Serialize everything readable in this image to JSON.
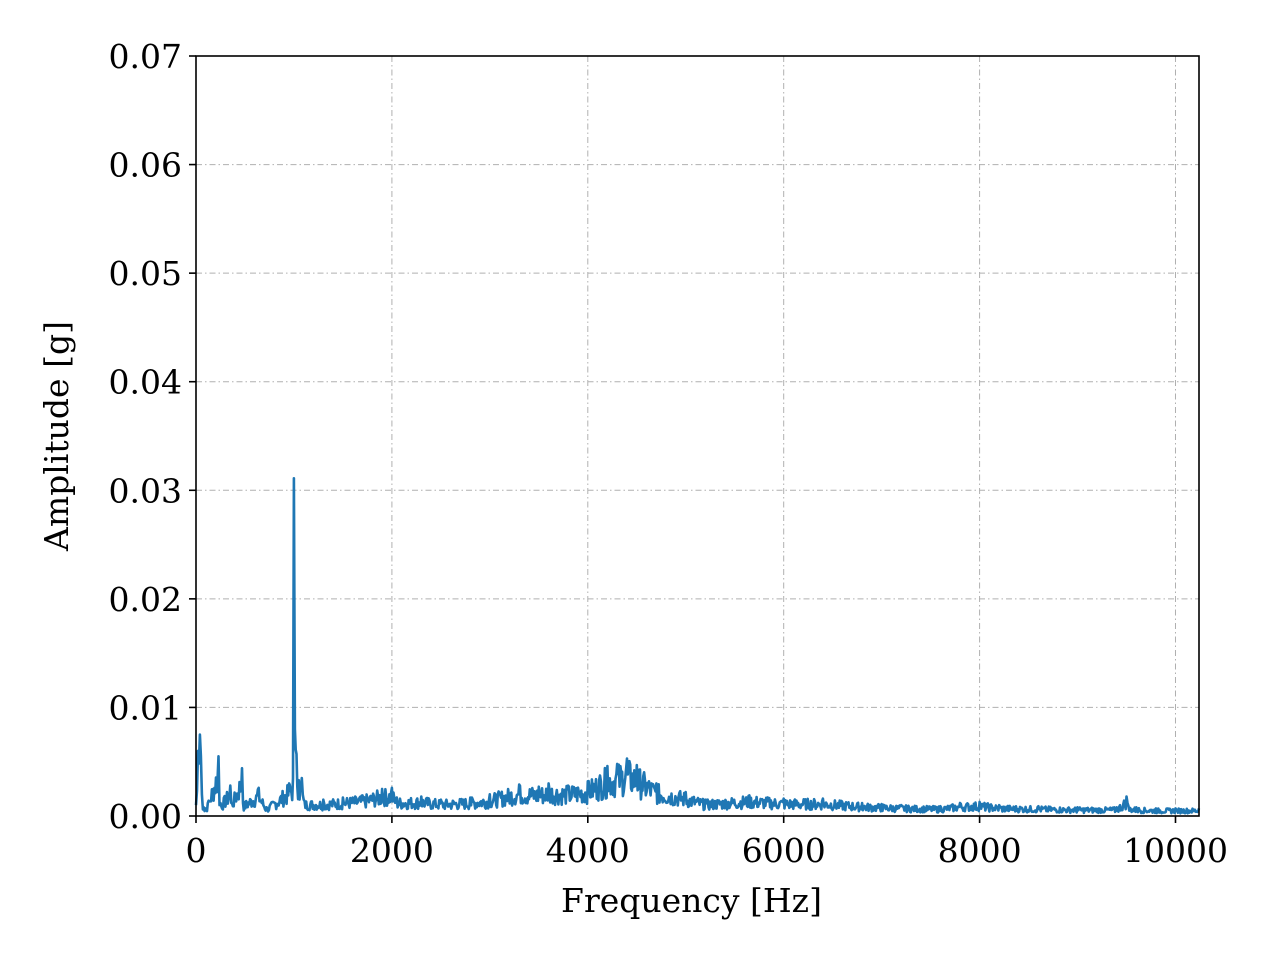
{
  "chart_data": {
    "type": "line",
    "title": "",
    "xlabel": "Frequency [Hz]",
    "ylabel": "Amplitude [g]",
    "xlim": [
      0,
      10240
    ],
    "ylim": [
      0,
      0.07
    ],
    "x_ticks": [
      0,
      2000,
      4000,
      6000,
      8000,
      10000
    ],
    "x_tick_labels": [
      "0",
      "2000",
      "4000",
      "6000",
      "8000",
      "10000"
    ],
    "y_ticks": [
      0,
      0.01,
      0.02,
      0.03,
      0.04,
      0.05,
      0.06,
      0.07
    ],
    "y_tick_labels": [
      "0.00",
      "0.01",
      "0.02",
      "0.03",
      "0.04",
      "0.05",
      "0.06",
      "0.07"
    ],
    "grid": true,
    "legend": "none",
    "colors": {
      "series": "#1f77b4",
      "grid": "#b0b0b0",
      "axes": "#000000"
    },
    "series": [
      {
        "x": [
          0,
          20,
          40,
          50,
          60,
          80,
          120,
          230,
          240,
          250,
          350,
          360,
          470,
          480,
          640,
          720,
          950,
          990,
          1000,
          1010,
          1050,
          1080,
          1100,
          1300,
          1500,
          1700,
          1900,
          2000,
          2050,
          2300,
          2500,
          2800,
          3000,
          3300,
          3500,
          3600,
          3800,
          4000,
          4200,
          4300,
          4400,
          4500,
          4700,
          5000,
          5200,
          5650,
          6000,
          6400,
          6800,
          7000,
          7200,
          7600,
          7800,
          8000,
          8200,
          8600,
          9000,
          9400,
          9500,
          9520,
          9600,
          9800,
          10000,
          10240
        ],
        "y": [
          0.001,
          0.006,
          0.0075,
          0.0055,
          0.002,
          0.0008,
          0.0012,
          0.0055,
          0.001,
          0.0012,
          0.0028,
          0.0012,
          0.0044,
          0.0012,
          0.0026,
          0.0008,
          0.003,
          0.0035,
          0.0311,
          0.008,
          0.0033,
          0.0035,
          0.0015,
          0.0015,
          0.0017,
          0.0019,
          0.0025,
          0.0026,
          0.0017,
          0.0018,
          0.0015,
          0.0017,
          0.002,
          0.0029,
          0.0027,
          0.003,
          0.0028,
          0.0032,
          0.0046,
          0.0048,
          0.0053,
          0.0047,
          0.003,
          0.0022,
          0.0015,
          0.0019,
          0.0016,
          0.0016,
          0.0012,
          0.0011,
          0.001,
          0.0009,
          0.0012,
          0.0013,
          0.001,
          0.0009,
          0.0008,
          0.0008,
          0.0018,
          0.0009,
          0.0008,
          0.0007,
          0.0007,
          0.0007
        ]
      }
    ]
  }
}
